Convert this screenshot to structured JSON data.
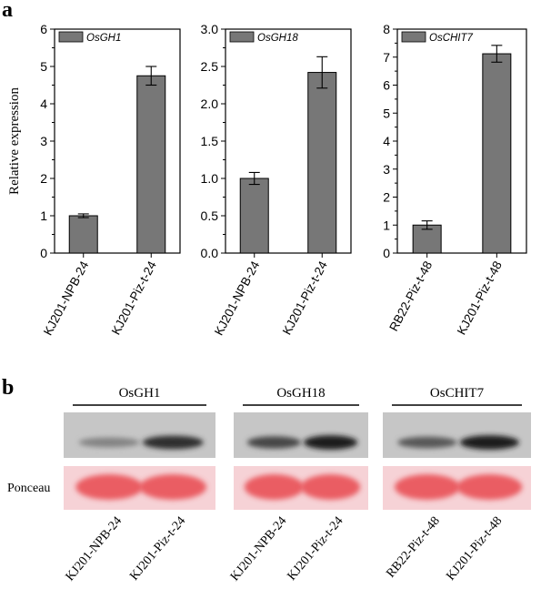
{
  "figure": {
    "panel_a_label": "a",
    "panel_b_label": "b",
    "y_axis_label": "Relative expression",
    "bar_color": "#777777",
    "legend_fill": "#777777"
  },
  "chart_data": [
    {
      "type": "bar",
      "legend": "OsGH1",
      "categories": [
        "KJ201-NPB-24",
        "KJ201-Piz-t-24"
      ],
      "values": [
        1.0,
        4.75
      ],
      "errors": [
        0.05,
        0.25
      ],
      "ylim": [
        0,
        6
      ],
      "yticks": [
        "0",
        "1",
        "2",
        "3",
        "4",
        "5",
        "6"
      ],
      "ylabel": "Relative expression"
    },
    {
      "type": "bar",
      "legend": "OsGH18",
      "categories": [
        "KJ201-NPB-24",
        "KJ201-Piz-t-24"
      ],
      "values": [
        1.0,
        2.42
      ],
      "errors": [
        0.08,
        0.21
      ],
      "ylim": [
        0,
        3
      ],
      "yticks": [
        "0.0",
        "0.5",
        "1.0",
        "1.5",
        "2.0",
        "2.5",
        "3.0"
      ]
    },
    {
      "type": "bar",
      "legend": "OsCHIT7",
      "categories": [
        "RB22-Piz-t-48",
        "KJ201-Piz-t-48"
      ],
      "values": [
        1.0,
        7.12
      ],
      "errors": [
        0.15,
        0.3
      ],
      "ylim": [
        0,
        8
      ],
      "yticks": [
        "0",
        "1",
        "2",
        "3",
        "4",
        "5",
        "6",
        "7",
        "8"
      ]
    }
  ],
  "blot": {
    "groups": [
      {
        "label": "OsGH1",
        "lanes": [
          "KJ201-NPB-24",
          "KJ201-Piz-t-24"
        ],
        "intensity": [
          0.35,
          0.85
        ]
      },
      {
        "label": "OsGH18",
        "lanes": [
          "KJ201-NPB-24",
          "KJ201-Piz-t-24"
        ],
        "intensity": [
          0.7,
          0.95
        ]
      },
      {
        "label": "OsCHIT7",
        "lanes": [
          "RB22-Piz-t-48",
          "KJ201-Piz-t-48"
        ],
        "intensity": [
          0.6,
          0.95
        ]
      }
    ],
    "loading_label": "Ponceau",
    "ponceau_color": "#e8484f",
    "ponceau_bg": "#f6d2d6",
    "blot_bg": "#c6c6c6"
  }
}
